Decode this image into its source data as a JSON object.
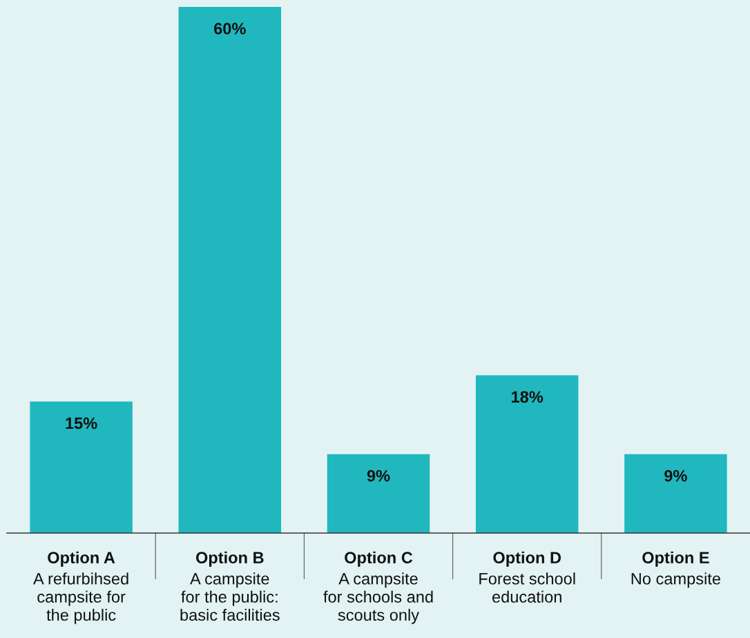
{
  "chart_data": {
    "type": "bar",
    "categories": [
      "Option A\nA refurbihsed\ncampsite for\nthe public",
      "Option B\nA campsite\nfor the public:\nbasic facilities",
      "Option C\nA campsite\nfor schools and\nscouts only",
      "Option D\nForest school\neducation",
      "Option E\nNo campsite"
    ],
    "values": [
      15,
      60,
      9,
      18,
      9
    ],
    "value_labels": [
      "15%",
      "60%",
      "9%",
      "18%",
      "9%"
    ],
    "color": "#20b8be"
  }
}
